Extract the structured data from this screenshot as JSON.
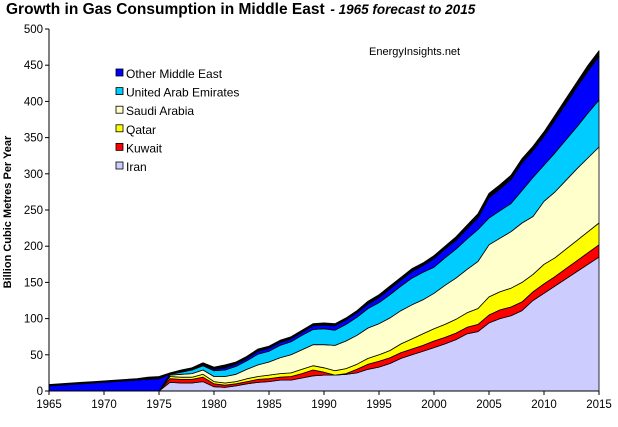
{
  "chart_data": {
    "type": "area",
    "stacked": true,
    "title": "Growth in Gas Consumption in Middle East",
    "subtitle": " - 1965 forecast to 2015",
    "annotation": "EnergyInsights.net",
    "ylabel": "Billion Cubic Metres Per Year",
    "xlabel": "",
    "xlim": [
      1965,
      2015
    ],
    "ylim": [
      0,
      500
    ],
    "x_ticks": [
      1965,
      1970,
      1975,
      1980,
      1985,
      1990,
      1995,
      2000,
      2005,
      2010,
      2015
    ],
    "y_ticks": [
      0,
      50,
      100,
      150,
      200,
      250,
      300,
      350,
      400,
      450,
      500
    ],
    "grid": false,
    "legend_position": "top-left",
    "legend_order": [
      "Other Middle East",
      "United Arab Emirates",
      "Saudi Arabia",
      "Qatar",
      "Kuwait",
      "Iran"
    ],
    "x": [
      1965,
      1966,
      1967,
      1968,
      1969,
      1970,
      1971,
      1972,
      1973,
      1974,
      1975,
      1976,
      1977,
      1978,
      1979,
      1980,
      1981,
      1982,
      1983,
      1984,
      1985,
      1986,
      1987,
      1988,
      1989,
      1990,
      1991,
      1992,
      1993,
      1994,
      1995,
      1996,
      1997,
      1998,
      1999,
      2000,
      2001,
      2002,
      2003,
      2004,
      2005,
      2006,
      2007,
      2008,
      2009,
      2010,
      2011,
      2012,
      2013,
      2014,
      2015
    ],
    "series": [
      {
        "name": "Iran",
        "color": "#ccccff",
        "values": [
          0,
          0,
          0,
          0,
          0,
          0,
          0,
          0,
          0,
          0,
          0,
          12,
          11,
          11,
          13,
          6,
          5,
          7,
          10,
          12,
          13,
          15,
          15,
          18,
          21,
          22,
          22,
          23,
          25,
          30,
          33,
          38,
          45,
          50,
          55,
          60,
          65,
          71,
          79,
          82,
          94,
          100,
          104,
          111,
          125,
          135,
          145,
          155,
          165,
          175,
          185
        ]
      },
      {
        "name": "Kuwait",
        "color": "#ff0000",
        "values": [
          0,
          0,
          0,
          0,
          0,
          0,
          0,
          0,
          0,
          0,
          0,
          5,
          5,
          5,
          6,
          4,
          3,
          3,
          3,
          4,
          4,
          4,
          5,
          6,
          8,
          4,
          0,
          1,
          5,
          7,
          8,
          8,
          8,
          8,
          8,
          9,
          9,
          9,
          9,
          10,
          11,
          12,
          12,
          12,
          12,
          13,
          13,
          14,
          15,
          16,
          17
        ]
      },
      {
        "name": "Qatar",
        "color": "#ffff00",
        "values": [
          0,
          0,
          0,
          0,
          0,
          0,
          0,
          0,
          0,
          0,
          0,
          3,
          3,
          3,
          4,
          3,
          3,
          3,
          4,
          4,
          5,
          5,
          5,
          6,
          6,
          6,
          6,
          7,
          7,
          8,
          9,
          10,
          12,
          14,
          16,
          17,
          18,
          19,
          20,
          22,
          25,
          25,
          26,
          27,
          24,
          27,
          26,
          27,
          28,
          29,
          30
        ]
      },
      {
        "name": "Saudi Arabia",
        "color": "#ffffcc",
        "values": [
          0,
          0,
          0,
          0,
          0,
          0,
          0,
          0,
          0,
          0,
          0,
          2,
          4,
          5,
          6,
          7,
          9,
          10,
          13,
          16,
          18,
          22,
          25,
          27,
          29,
          32,
          35,
          38,
          40,
          42,
          43,
          45,
          46,
          47,
          47,
          49,
          54,
          57,
          60,
          65,
          72,
          74,
          78,
          82,
          80,
          87,
          91,
          95,
          99,
          102,
          105
        ]
      },
      {
        "name": "United Arab Emirates",
        "color": "#00ccff",
        "values": [
          0,
          0,
          0,
          0,
          0,
          0,
          0,
          0,
          0,
          0,
          0,
          1,
          3,
          5,
          6,
          8,
          9,
          11,
          12,
          15,
          15,
          17,
          18,
          20,
          21,
          22,
          21,
          23,
          25,
          27,
          29,
          32,
          34,
          37,
          38,
          36,
          38,
          40,
          42,
          44,
          37,
          38,
          39,
          45,
          54,
          50,
          54,
          56,
          58,
          62,
          65
        ]
      },
      {
        "name": "Other Middle East",
        "color": "#0000ff",
        "values": [
          7,
          8,
          9,
          10,
          11,
          12,
          13,
          14,
          15,
          16,
          17,
          0,
          1,
          1,
          1,
          2,
          3,
          3,
          3,
          4,
          4,
          4,
          4,
          4,
          5,
          5,
          6,
          6,
          6,
          6,
          7,
          8,
          8,
          9,
          9,
          12,
          12,
          12,
          14,
          16,
          28,
          30,
          33,
          38,
          37,
          40,
          45,
          50,
          55,
          58,
          60
        ]
      },
      {
        "name": "",
        "color": "#000000",
        "values": [
          2,
          2,
          2,
          2,
          2,
          2,
          2,
          2,
          2,
          3,
          3,
          2,
          2,
          2,
          3,
          3,
          4,
          3,
          3,
          3,
          3,
          3,
          3,
          3,
          3,
          3,
          3,
          3,
          3,
          4,
          4,
          4,
          4,
          4,
          4,
          4,
          4,
          5,
          5,
          6,
          6,
          6,
          6,
          6,
          6,
          6,
          7,
          7,
          7,
          8,
          8
        ]
      }
    ]
  }
}
